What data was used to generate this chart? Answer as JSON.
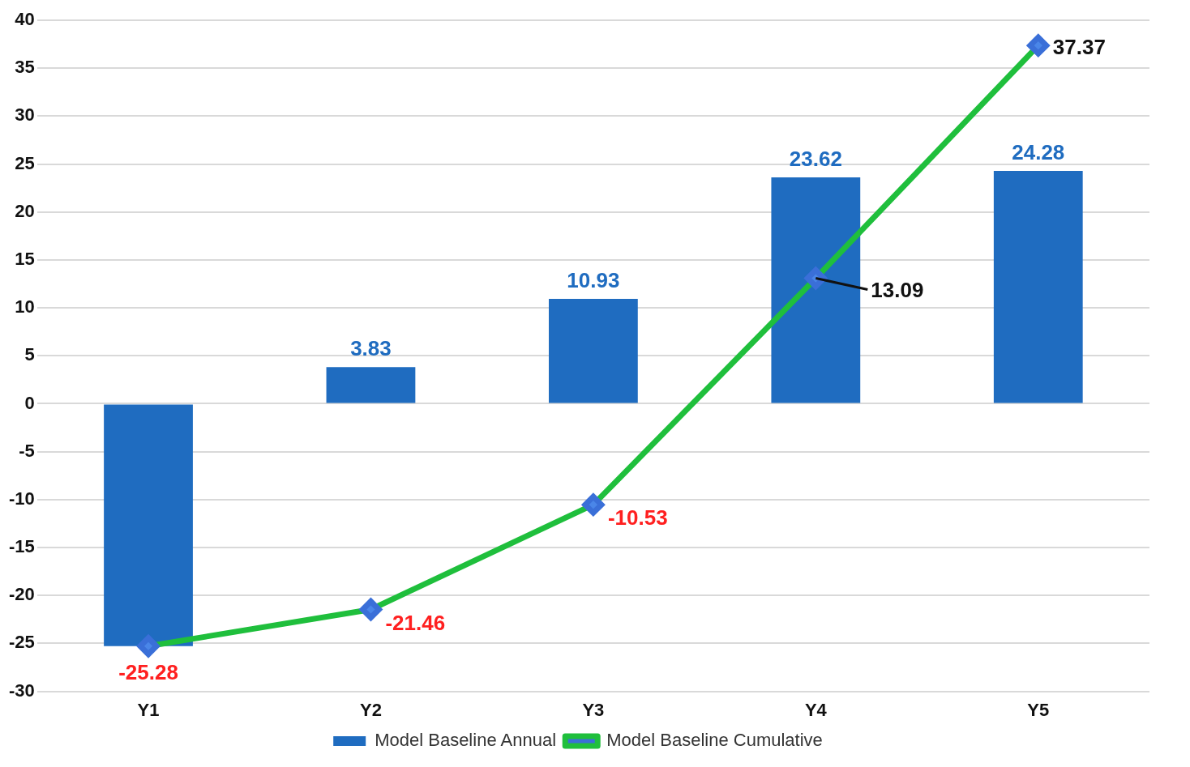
{
  "chart_data": {
    "type": "bar",
    "categories": [
      "Y1",
      "Y2",
      "Y3",
      "Y4",
      "Y5"
    ],
    "series": [
      {
        "name": "Model Baseline Annual",
        "color": "#1f6cc0",
        "values": [
          -25.28,
          3.83,
          10.93,
          23.62,
          24.28
        ],
        "value_labels": [
          null,
          "3.83",
          "10.93",
          "23.62",
          "24.28"
        ]
      },
      {
        "name": "Model Baseline Cumulative",
        "type": "line",
        "color": "#1fbf3c",
        "marker": "diamond",
        "values": [
          -25.28,
          -21.46,
          -10.53,
          13.09,
          37.37
        ],
        "value_labels": [
          "-25.28",
          "-21.46",
          "-10.53",
          "13.09",
          "37.37"
        ]
      }
    ],
    "ylim": [
      -30,
      40
    ],
    "yticks": [
      -30,
      -25,
      -20,
      -15,
      -10,
      -5,
      0,
      5,
      10,
      15,
      20,
      25,
      30,
      35,
      40
    ],
    "grid": "y",
    "legend": "bottom"
  }
}
